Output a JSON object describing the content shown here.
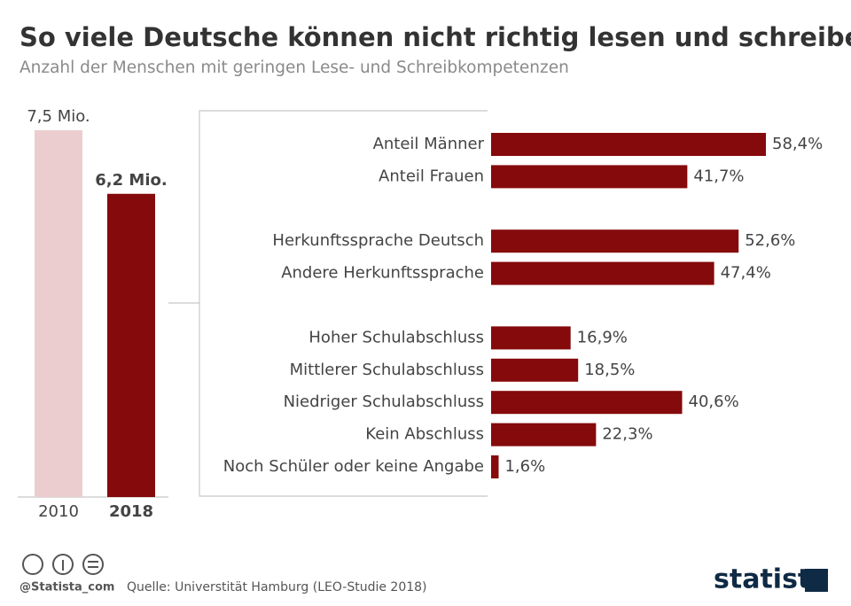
{
  "header": {
    "title": "So viele Deutsche können nicht richtig lesen und schreiben",
    "subtitle": "Anzahl der Menschen mit geringen Lese- und Schreibkompetenzen"
  },
  "chart_data": [
    {
      "type": "bar",
      "orientation": "vertical",
      "categories": [
        "2010",
        "2018"
      ],
      "values": [
        7.5,
        6.2
      ],
      "value_labels": [
        "7,5 Mio.",
        "6,2 Mio."
      ],
      "colors": [
        "#eccdcf",
        "#850a0b"
      ]
    },
    {
      "type": "bar",
      "orientation": "horizontal",
      "categories": [
        "Anteil Männer",
        "Anteil Frauen",
        "Herkunftssprache Deutsch",
        "Andere Herkunftssprache",
        "Hoher Schulabschluss",
        "Mittlerer Schulabschluss",
        "Niedriger Schulabschluss",
        "Kein Abschluss",
        "Noch Schüler oder keine Angabe"
      ],
      "values": [
        58.4,
        41.7,
        52.6,
        47.4,
        16.9,
        18.5,
        40.6,
        22.3,
        1.6
      ],
      "value_labels": [
        "58,4%",
        "41,7%",
        "52,6%",
        "47,4%",
        "16,9%",
        "18,5%",
        "40,6%",
        "22,3%",
        "1,6%"
      ],
      "color": "#850a0b"
    }
  ],
  "footer": {
    "credit": "@Statista_com",
    "source": "Quelle: Universtität Hamburg (LEO-Studie 2018)",
    "logo": "statista"
  }
}
